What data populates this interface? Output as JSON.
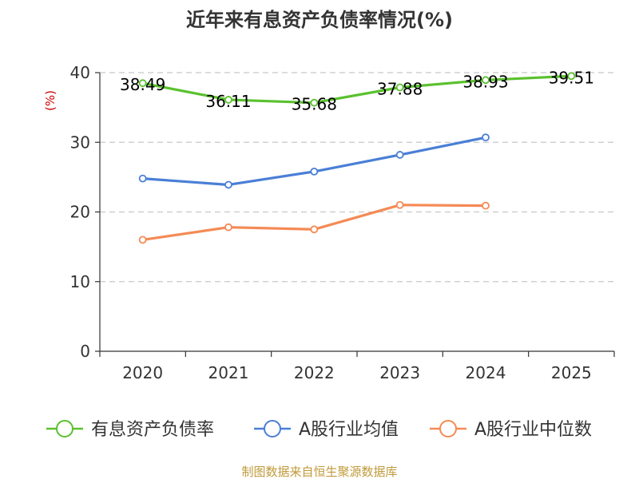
{
  "chart_data": {
    "type": "line",
    "title": "近年来有息资产负债率情况(%)",
    "ylabel": "(%)",
    "xlabel": "",
    "categories": [
      "2020",
      "2021",
      "2022",
      "2023",
      "2024",
      "2025"
    ],
    "ylim": [
      0,
      40
    ],
    "yticks": [
      "0",
      "10",
      "20",
      "30",
      "40"
    ],
    "grid": "horizontal dashed",
    "legend_position": "bottom",
    "series": [
      {
        "name": "有息资产负债率",
        "color": "#5ac12e",
        "values": [
          38.49,
          36.11,
          35.68,
          37.88,
          38.93,
          39.51
        ],
        "labels": [
          "38.49",
          "36.11",
          "35.68",
          "37.88",
          "38.93",
          "39.51"
        ]
      },
      {
        "name": "A股行业均值",
        "color": "#4a7fd6",
        "values": [
          24.8,
          23.9,
          25.8,
          28.2,
          30.7,
          null
        ]
      },
      {
        "name": "A股行业中位数",
        "color": "#f58a55",
        "values": [
          16.0,
          17.8,
          17.5,
          21.0,
          20.9,
          null
        ]
      }
    ],
    "source": "制图数据来自恒生聚源数据库"
  }
}
